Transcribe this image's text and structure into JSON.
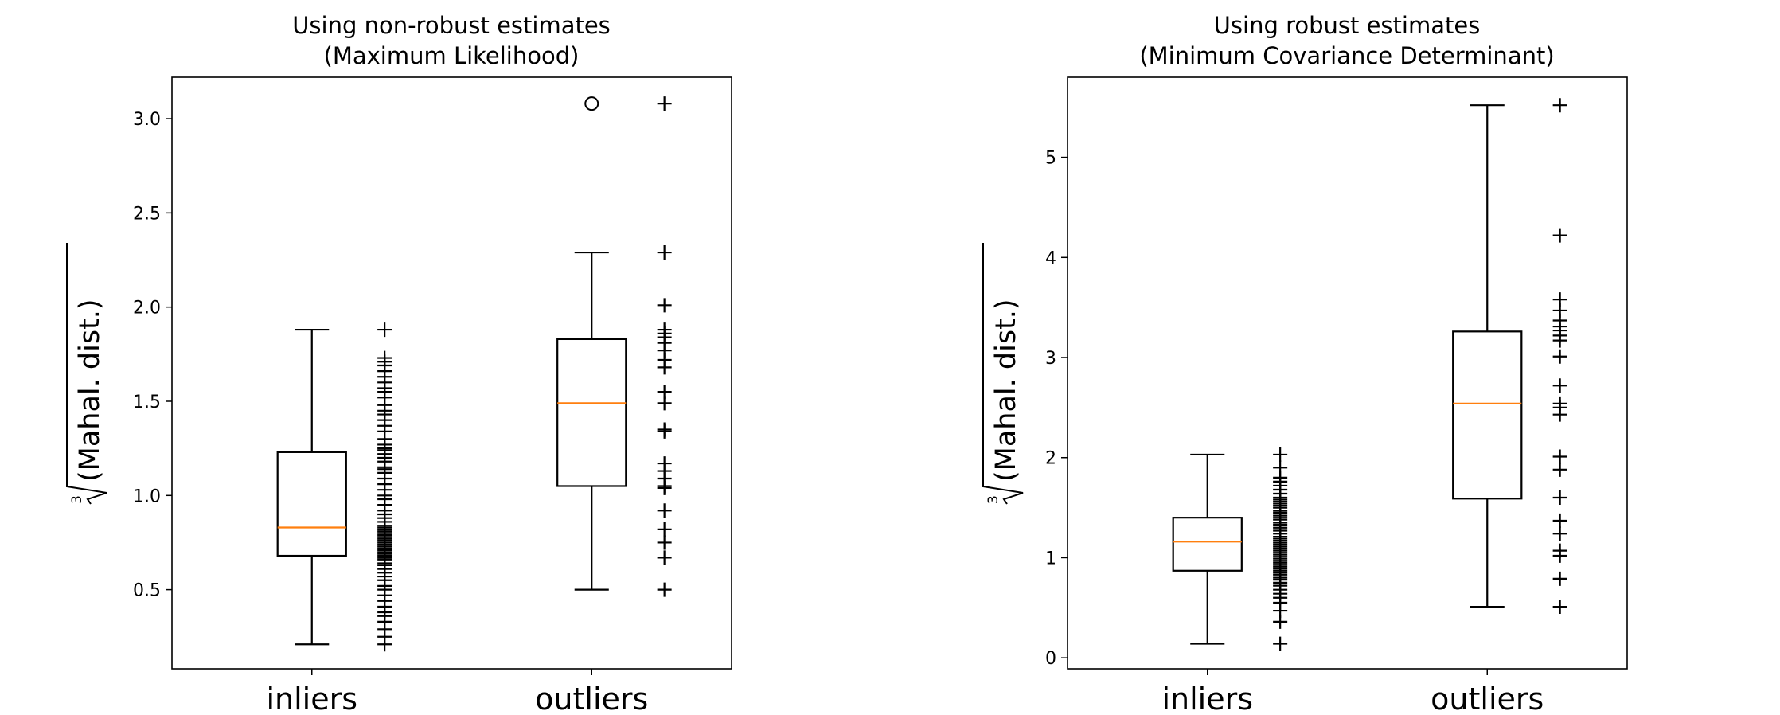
{
  "chart_data": [
    {
      "type": "box",
      "title": "Using non-robust estimates\n(Maximum Likelihood)",
      "title_lines": [
        "Using non-robust estimates",
        "(Maximum Likelihood)"
      ],
      "ylabel": {
        "index": "3",
        "radicand": "(Mahal. dist.)"
      },
      "categories": [
        "inliers",
        "outliers"
      ],
      "ylim": [
        0.08,
        3.22
      ],
      "yticks": [
        0.5,
        1.0,
        1.5,
        2.0,
        2.5,
        3.0
      ],
      "ytick_labels": [
        "0.5",
        "1.0",
        "1.5",
        "2.0",
        "2.5",
        "3.0"
      ],
      "boxes": [
        {
          "whislo": 0.21,
          "q1": 0.68,
          "med": 0.83,
          "q3": 1.23,
          "whishi": 1.88,
          "fliers": []
        },
        {
          "whislo": 0.5,
          "q1": 1.05,
          "med": 1.49,
          "q3": 1.83,
          "whishi": 2.29,
          "fliers": [
            3.08
          ]
        }
      ],
      "points": [
        [
          0.21,
          0.25,
          0.29,
          0.33,
          0.36,
          0.38,
          0.41,
          0.44,
          0.47,
          0.5,
          0.52,
          0.55,
          0.57,
          0.59,
          0.61,
          0.63,
          0.64,
          0.66,
          0.67,
          0.68,
          0.69,
          0.7,
          0.71,
          0.72,
          0.73,
          0.74,
          0.75,
          0.76,
          0.77,
          0.78,
          0.79,
          0.8,
          0.81,
          0.82,
          0.83,
          0.84,
          0.86,
          0.88,
          0.9,
          0.92,
          0.95,
          0.98,
          1.0,
          1.03,
          1.06,
          1.09,
          1.12,
          1.14,
          1.15,
          1.18,
          1.2,
          1.22,
          1.24,
          1.25,
          1.27,
          1.3,
          1.34,
          1.37,
          1.4,
          1.43,
          1.45,
          1.48,
          1.52,
          1.55,
          1.57,
          1.6,
          1.63,
          1.66,
          1.69,
          1.71,
          1.73,
          1.88
        ],
        [
          3.08,
          2.29,
          2.01,
          1.88,
          1.86,
          1.84,
          1.81,
          1.77,
          1.72,
          1.68,
          1.55,
          1.49,
          1.35,
          1.34,
          1.17,
          1.13,
          1.09,
          1.05,
          1.04,
          0.92,
          0.82,
          0.75,
          0.67,
          0.5
        ]
      ]
    },
    {
      "type": "box",
      "title": "Using robust estimates\n(Minimum Covariance Determinant)",
      "title_lines": [
        "Using robust estimates",
        "(Minimum Covariance Determinant)"
      ],
      "ylabel": {
        "index": "3",
        "radicand": "(Mahal. dist.)"
      },
      "categories": [
        "inliers",
        "outliers"
      ],
      "ylim": [
        -0.11,
        5.8
      ],
      "yticks": [
        0,
        1,
        2,
        3,
        4,
        5
      ],
      "ytick_labels": [
        "0",
        "1",
        "2",
        "3",
        "4",
        "5"
      ],
      "boxes": [
        {
          "whislo": 0.14,
          "q1": 0.87,
          "med": 1.16,
          "q3": 1.4,
          "whishi": 2.03,
          "fliers": []
        },
        {
          "whislo": 0.51,
          "q1": 1.59,
          "med": 2.54,
          "q3": 3.26,
          "whishi": 5.52,
          "fliers": []
        }
      ],
      "points": [
        [
          0.14,
          0.36,
          0.47,
          0.55,
          0.6,
          0.64,
          0.68,
          0.72,
          0.75,
          0.78,
          0.8,
          0.83,
          0.85,
          0.87,
          0.89,
          0.91,
          0.93,
          0.95,
          0.97,
          0.99,
          1.01,
          1.03,
          1.05,
          1.07,
          1.09,
          1.11,
          1.13,
          1.15,
          1.17,
          1.19,
          1.21,
          1.24,
          1.27,
          1.3,
          1.33,
          1.35,
          1.38,
          1.4,
          1.42,
          1.45,
          1.47,
          1.5,
          1.52,
          1.54,
          1.56,
          1.58,
          1.6,
          1.64,
          1.68,
          1.72,
          1.76,
          1.8,
          1.9,
          2.03
        ],
        [
          5.52,
          4.22,
          3.58,
          3.47,
          3.37,
          3.31,
          3.27,
          3.22,
          3.17,
          3.01,
          2.72,
          2.54,
          2.5,
          2.43,
          2.01,
          1.88,
          1.6,
          1.37,
          1.24,
          1.07,
          1.02,
          0.79,
          0.51
        ]
      ]
    }
  ],
  "colors": {
    "box": "#000000",
    "median": "#ff7f0e",
    "points": "#000000"
  }
}
